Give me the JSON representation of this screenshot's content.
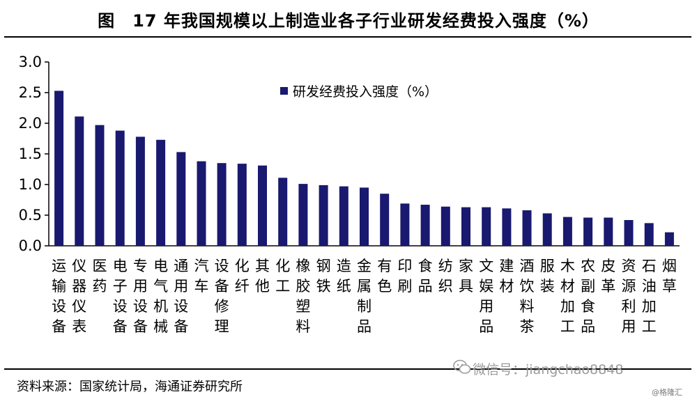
{
  "title": "图　17 年我国规模以上制造业各子行业研发经费投入强度（%）",
  "source": "资料来源：国家统计局，海通证券研究所",
  "watermark": "微信号：jiangchao8848",
  "corner_mark": "@格隆汇",
  "colors": {
    "bar": "#191970",
    "axis": "#000000"
  },
  "chart_data": {
    "type": "bar",
    "title": "17 年我国规模以上制造业各子行业研发经费投入强度（%）",
    "xlabel": "",
    "ylabel": "",
    "ylim": [
      0,
      3.0
    ],
    "yticks": [
      "0.0",
      "0.5",
      "1.0",
      "1.5",
      "2.0",
      "2.5",
      "3.0"
    ],
    "grid": false,
    "legend_position": "top-center",
    "categories": [
      "运输设备",
      "仪器仪表",
      "医药",
      "电子设备",
      "专用设备",
      "电气机械",
      "通用设备",
      "汽车",
      "设备修理",
      "化纤",
      "其他",
      "化工",
      "橡胶塑料",
      "钢铁",
      "造纸",
      "金属制品",
      "有色",
      "印刷",
      "食品",
      "纺织",
      "家具",
      "文娱用品",
      "建材",
      "酒饮料茶",
      "服装",
      "木材加工",
      "农副食品",
      "皮革",
      "资源利用",
      "石油加工",
      "烟草"
    ],
    "series": [
      {
        "name": "研发经费投入强度（%）",
        "values": [
          2.53,
          2.11,
          1.97,
          1.88,
          1.78,
          1.73,
          1.53,
          1.38,
          1.35,
          1.34,
          1.31,
          1.11,
          1.01,
          0.99,
          0.97,
          0.95,
          0.85,
          0.69,
          0.67,
          0.64,
          0.63,
          0.63,
          0.61,
          0.58,
          0.53,
          0.47,
          0.46,
          0.46,
          0.42,
          0.37,
          0.22
        ]
      }
    ]
  }
}
